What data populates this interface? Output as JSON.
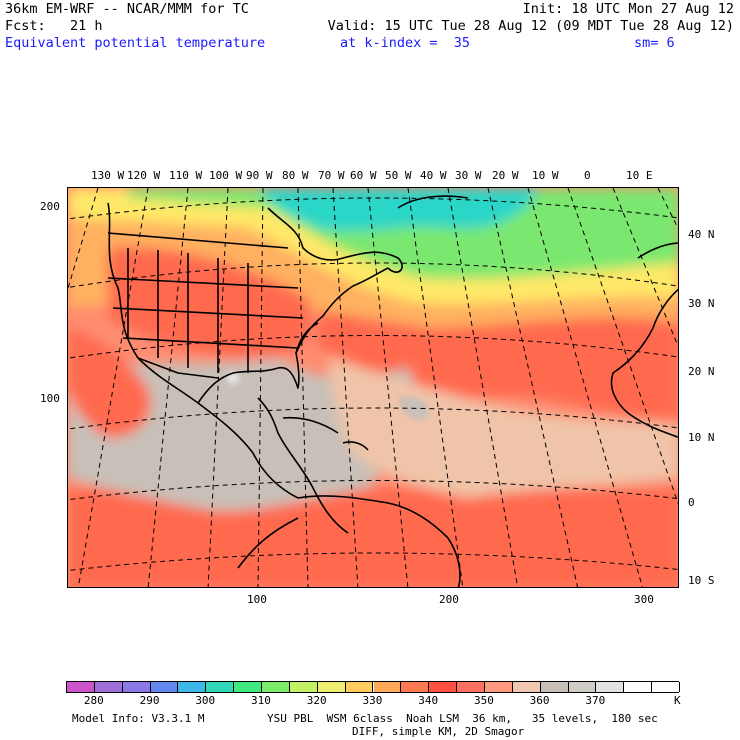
{
  "header": {
    "line1_left": "36km EM-WRF -- NCAR/MMM for TC",
    "line1_right": "Init: 18 UTC Mon 27 Aug 12",
    "line2_left": "Fcst:   21 h",
    "line2_right": "Valid: 15 UTC Tue 28 Aug 12 (09 MDT Tue 28 Aug 12)",
    "line3_field": "Equivalent potential temperature",
    "line3_level": "at k-index =  35",
    "line3_smooth": "sm= 6"
  },
  "map": {
    "top_lon_labels": [
      "130 W",
      "120 W",
      "110 W",
      "100 W",
      "90 W",
      "80 W",
      "70 W",
      "60 W",
      "50 W",
      "40 W",
      "30 W",
      "20 W",
      "10 W",
      "0",
      "10 E"
    ],
    "right_lat_labels": [
      "40 N",
      "30 N",
      "20 N",
      "10 N",
      "0",
      "10 S"
    ],
    "left_grid_labels": [
      "200",
      "100"
    ],
    "bottom_grid_labels": [
      "100",
      "200",
      "300"
    ],
    "colors": {
      "cold_north": "#30e0a8",
      "cyan_north": "#2cd6c8",
      "green": "#7ae870",
      "yellow_green": "#c8f06a",
      "yellow": "#ffe868",
      "orange": "#ffb060",
      "red_orange": "#ff6a50",
      "salmon": "#ff8c70",
      "peach": "#f0c4a8",
      "gray": "#c8c0b8",
      "white_gray": "#e8e6e4",
      "land_lines": "#000000"
    }
  },
  "legend": {
    "colors": [
      "#cc55cc",
      "#a070d8",
      "#8c78e6",
      "#6088ee",
      "#3cb8e8",
      "#30d8b8",
      "#40e880",
      "#7aec68",
      "#c4f064",
      "#f0ee70",
      "#ffcc60",
      "#ffaa58",
      "#ff7a50",
      "#ff5040",
      "#ff7060",
      "#ff9a80",
      "#f0c8b0",
      "#c8c0b8",
      "#d0ccc8",
      "#e4e2e0",
      "#ffffff",
      "#ffffff"
    ],
    "tick_labels": [
      "280",
      "290",
      "300",
      "310",
      "320",
      "330",
      "340",
      "350",
      "360",
      "370"
    ],
    "unit": "K"
  },
  "footer": {
    "model_info": "Model Info: V3.3.1 M",
    "physics1": "YSU PBL  WSM 6class  Noah LSM  36 km,   35 levels,  180 sec",
    "physics2": "DIFF, simple KM, 2D Smagor"
  }
}
